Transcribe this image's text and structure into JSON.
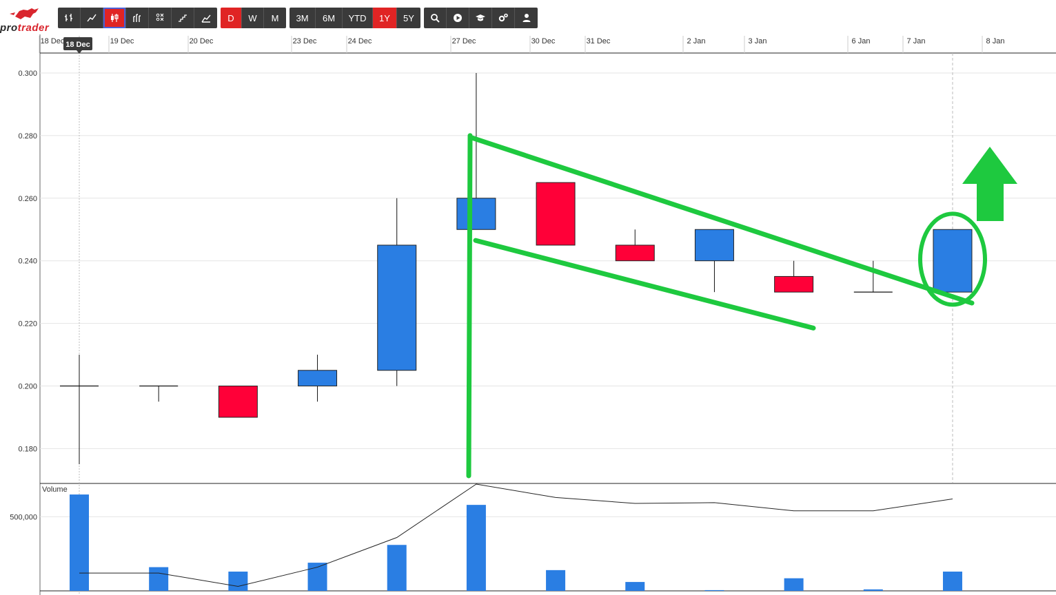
{
  "app": {
    "logo_text_prefix": "pro",
    "logo_text_suffix": "trader",
    "brand_color": "#d9262e"
  },
  "toolbar": {
    "chart_type_icons": [
      "ohlc-icon",
      "line-chart-icon",
      "candlestick-icon",
      "hlc-icon",
      "point-figure-icon",
      "renko-icon",
      "area-chart-icon"
    ],
    "active_chart_type": "candlestick-icon",
    "intervals": [
      "D",
      "W",
      "M"
    ],
    "active_interval": "D",
    "ranges": [
      "3M",
      "6M",
      "YTD",
      "1Y",
      "5Y"
    ],
    "active_range": "1Y",
    "tool_icons": [
      "search-icon",
      "play-icon",
      "graduation-cap-icon",
      "settings-icon",
      "user-icon"
    ]
  },
  "colors": {
    "up": "#2a7ee3",
    "down": "#ff0038",
    "annotation": "#1ec93f",
    "toolbar_bg": "#3a3a3a",
    "toolbar_active": "#e02424"
  },
  "chart_data": [
    {
      "type": "candlestick",
      "title": "",
      "dates": [
        "18 Dec",
        "19 Dec",
        "20 Dec",
        "23 Dec",
        "24 Dec",
        "27 Dec",
        "30 Dec",
        "31 Dec",
        "2 Jan",
        "3 Jan",
        "6 Jan",
        "7 Jan"
      ],
      "open": [
        0.2,
        0.2,
        0.2,
        0.2,
        0.205,
        0.25,
        0.265,
        0.245,
        0.24,
        0.235,
        0.23,
        0.23
      ],
      "high": [
        0.21,
        0.2,
        0.2,
        0.21,
        0.26,
        0.3,
        0.265,
        0.25,
        0.25,
        0.24,
        0.24,
        0.25
      ],
      "low": [
        0.175,
        0.195,
        0.19,
        0.195,
        0.2,
        0.25,
        0.245,
        0.24,
        0.23,
        0.23,
        0.23,
        0.23
      ],
      "close": [
        0.2,
        0.2,
        0.19,
        0.205,
        0.245,
        0.26,
        0.245,
        0.24,
        0.25,
        0.23,
        0.23,
        0.25
      ],
      "x_tick_labels": [
        "18 Dec",
        "19 Dec",
        "20 Dec",
        "23 Dec",
        "24 Dec",
        "27 Dec",
        "30 Dec",
        "31 Dec",
        "2 Jan",
        "3 Jan",
        "6 Jan",
        "7 Jan",
        "8 Jan"
      ],
      "y_tick_labels": [
        "0.180",
        "0.200",
        "0.220",
        "0.240",
        "0.260",
        "0.280",
        "0.300"
      ],
      "ylim": [
        0.1735,
        0.3065
      ],
      "crosshair_label": "18 Dec",
      "grid": true
    },
    {
      "type": "bar",
      "title": "Volume",
      "dates": [
        "18 Dec",
        "19 Dec",
        "20 Dec",
        "23 Dec",
        "24 Dec",
        "27 Dec",
        "30 Dec",
        "31 Dec",
        "2 Jan",
        "3 Jan",
        "6 Jan",
        "7 Jan"
      ],
      "values": [
        650000,
        160000,
        130000,
        190000,
        310000,
        580000,
        140000,
        60000,
        5000,
        85000,
        10000,
        130000
      ],
      "moving_average": [
        120000,
        120000,
        30000,
        160000,
        360000,
        720000,
        630000,
        590000,
        595000,
        540000,
        540000,
        620000
      ],
      "y_tick_labels": [
        "500,000"
      ],
      "ylim": [
        0,
        720000
      ]
    }
  ],
  "annotations": {
    "description": "green bull flag drawing with breakout circle and up arrow",
    "flagpole": [
      [
        "27 Dec",
        0.1735
      ],
      [
        "27 Dec",
        0.28
      ]
    ],
    "upper_line": [
      [
        "27 Dec",
        0.28
      ],
      [
        "7 Jan",
        0.227
      ]
    ],
    "lower_line": [
      [
        "27 Dec",
        0.2465
      ],
      [
        "3 Jan",
        0.2185
      ]
    ],
    "circle_center": [
      "7 Jan",
      0.24
    ],
    "arrow": "up"
  }
}
